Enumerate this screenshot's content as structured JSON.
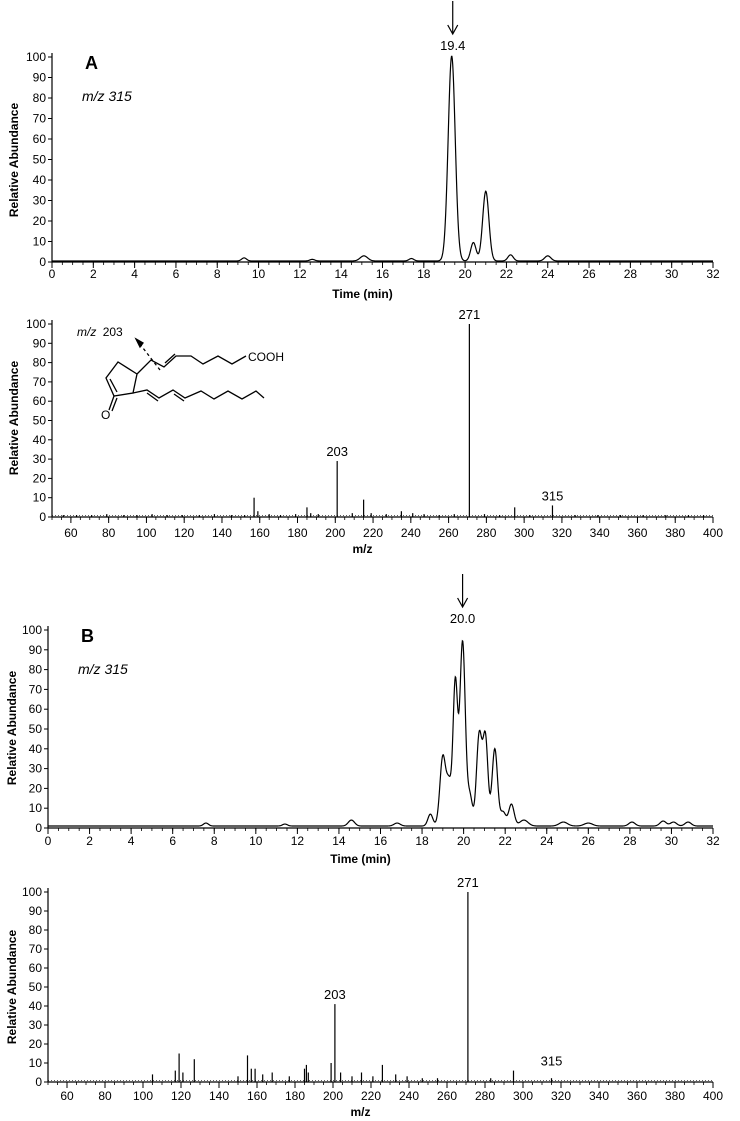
{
  "colors": {
    "line": "#000000",
    "background": "#ffffff"
  },
  "structure": {
    "fragment_label_prefix": "m/z",
    "fragment_label_value": "203",
    "cooh_label": "COOH",
    "oxo_label": "O"
  },
  "chart_data": [
    {
      "type": "line",
      "panel_label": "A",
      "ion_label": "m/z 315",
      "xlabel": "Time (min)",
      "ylabel": "Relative Abundance",
      "xlim": [
        0,
        32
      ],
      "ylim": [
        0,
        100
      ],
      "x_ticks": [
        0,
        2,
        4,
        6,
        8,
        10,
        12,
        14,
        16,
        18,
        20,
        22,
        24,
        26,
        28,
        30,
        32
      ],
      "y_ticks": [
        0,
        10,
        20,
        30,
        40,
        50,
        60,
        70,
        80,
        90,
        100
      ],
      "baseline": 0.5,
      "peaks": [
        {
          "rt": 9.3,
          "height": 1.5,
          "width": 0.12
        },
        {
          "rt": 12.6,
          "height": 0.8,
          "width": 0.12
        },
        {
          "rt": 15.1,
          "height": 2.5,
          "width": 0.18
        },
        {
          "rt": 17.4,
          "height": 1.2,
          "width": 0.12
        },
        {
          "rt": 19.35,
          "height": 100,
          "width": 0.17
        },
        {
          "rt": 20.4,
          "height": 9,
          "width": 0.13
        },
        {
          "rt": 21.0,
          "height": 34,
          "width": 0.15
        },
        {
          "rt": 22.2,
          "height": 3,
          "width": 0.13
        },
        {
          "rt": 24.0,
          "height": 2.5,
          "width": 0.15
        }
      ],
      "annotation": {
        "text": "19.4",
        "x": 19.4,
        "y": 100,
        "arrow": true
      }
    },
    {
      "type": "bar",
      "xlabel": "m/z",
      "ylabel": "Relative Abundance",
      "xlim": [
        50,
        400
      ],
      "ylim": [
        0,
        100
      ],
      "x_ticks": [
        60,
        80,
        100,
        120,
        140,
        160,
        180,
        200,
        220,
        240,
        260,
        280,
        300,
        320,
        340,
        360,
        380,
        400
      ],
      "y_ticks": [
        0,
        10,
        20,
        30,
        40,
        50,
        60,
        70,
        80,
        90,
        100
      ],
      "x": [
        56,
        63,
        71,
        79,
        88,
        95,
        103,
        111,
        119,
        128,
        136,
        145,
        152,
        157,
        159,
        165,
        171,
        179,
        185,
        187,
        191,
        201,
        209,
        215,
        219,
        227,
        235,
        241,
        247,
        255,
        263,
        271,
        279,
        287,
        295,
        303,
        315,
        327,
        339,
        351,
        363,
        375,
        387,
        395
      ],
      "values": [
        1,
        1,
        1,
        1.5,
        1,
        1,
        1.5,
        1,
        1,
        1,
        1.5,
        1,
        1,
        10,
        3,
        1.5,
        1,
        1.5,
        5,
        2,
        1.5,
        29,
        2,
        9,
        2,
        1.5,
        3,
        2,
        1.5,
        1,
        1.5,
        100,
        1.5,
        1,
        5,
        1,
        6,
        1,
        1,
        1,
        1,
        1,
        1,
        1
      ],
      "labels": [
        {
          "text": "271",
          "x": 271,
          "y": 100
        },
        {
          "text": "203",
          "x": 201,
          "y": 29
        },
        {
          "text": "315",
          "x": 315,
          "y": 6
        }
      ]
    },
    {
      "type": "line",
      "panel_label": "B",
      "ion_label": "m/z 315",
      "xlabel": "Time (min)",
      "ylabel": "Relative Abundance",
      "xlim": [
        0,
        32
      ],
      "ylim": [
        0,
        100
      ],
      "x_ticks": [
        0,
        2,
        4,
        6,
        8,
        10,
        12,
        14,
        16,
        18,
        20,
        22,
        24,
        26,
        28,
        30,
        32
      ],
      "y_ticks": [
        0,
        10,
        20,
        30,
        40,
        50,
        60,
        70,
        80,
        90,
        100
      ],
      "baseline": 1,
      "peaks": [
        {
          "rt": 7.6,
          "height": 1.5,
          "width": 0.12
        },
        {
          "rt": 11.4,
          "height": 1,
          "width": 0.12
        },
        {
          "rt": 14.6,
          "height": 3,
          "width": 0.15
        },
        {
          "rt": 16.8,
          "height": 1.5,
          "width": 0.15
        },
        {
          "rt": 18.4,
          "height": 6,
          "width": 0.12
        },
        {
          "rt": 19.0,
          "height": 35,
          "width": 0.14
        },
        {
          "rt": 19.3,
          "height": 20,
          "width": 0.12
        },
        {
          "rt": 19.6,
          "height": 72,
          "width": 0.11
        },
        {
          "rt": 19.95,
          "height": 93,
          "width": 0.13
        },
        {
          "rt": 20.3,
          "height": 15,
          "width": 0.12
        },
        {
          "rt": 20.75,
          "height": 46,
          "width": 0.13
        },
        {
          "rt": 21.05,
          "height": 44,
          "width": 0.12
        },
        {
          "rt": 21.5,
          "height": 39,
          "width": 0.13
        },
        {
          "rt": 21.9,
          "height": 7,
          "width": 0.13
        },
        {
          "rt": 22.3,
          "height": 11,
          "width": 0.13
        },
        {
          "rt": 22.9,
          "height": 3,
          "width": 0.2
        },
        {
          "rt": 24.8,
          "height": 2,
          "width": 0.2
        },
        {
          "rt": 26.0,
          "height": 1.5,
          "width": 0.2
        },
        {
          "rt": 28.1,
          "height": 2,
          "width": 0.15
        },
        {
          "rt": 29.6,
          "height": 2.5,
          "width": 0.15
        },
        {
          "rt": 30.1,
          "height": 2,
          "width": 0.15
        },
        {
          "rt": 30.8,
          "height": 2,
          "width": 0.15
        }
      ],
      "annotation": {
        "text": "20.0",
        "x": 19.95,
        "y": 100,
        "arrow": true
      }
    },
    {
      "type": "bar",
      "xlabel": "m/z",
      "ylabel": "Relative Abundance",
      "xlim": [
        50,
        400
      ],
      "ylim": [
        0,
        100
      ],
      "x_ticks": [
        60,
        80,
        100,
        120,
        140,
        160,
        180,
        200,
        220,
        240,
        260,
        280,
        300,
        320,
        340,
        360,
        380,
        400
      ],
      "y_ticks": [
        0,
        10,
        20,
        30,
        40,
        50,
        60,
        70,
        80,
        90,
        100
      ],
      "x": [
        105,
        117,
        119,
        121,
        127,
        150,
        155,
        157,
        159,
        163,
        168,
        177,
        185,
        186,
        187,
        199,
        201,
        204,
        210,
        215,
        221,
        226,
        233,
        239,
        247,
        255,
        271,
        283,
        295,
        315
      ],
      "values": [
        4,
        6,
        15,
        5,
        12,
        3,
        14,
        7,
        7,
        4,
        5,
        3,
        7,
        9,
        5,
        10,
        41,
        5,
        3,
        5,
        3,
        9,
        4,
        3,
        2,
        2,
        100,
        2,
        6,
        2
      ],
      "labels": [
        {
          "text": "271",
          "x": 271,
          "y": 100
        },
        {
          "text": "203",
          "x": 201,
          "y": 41
        },
        {
          "text": "315",
          "x": 315,
          "y": 6
        }
      ]
    }
  ]
}
